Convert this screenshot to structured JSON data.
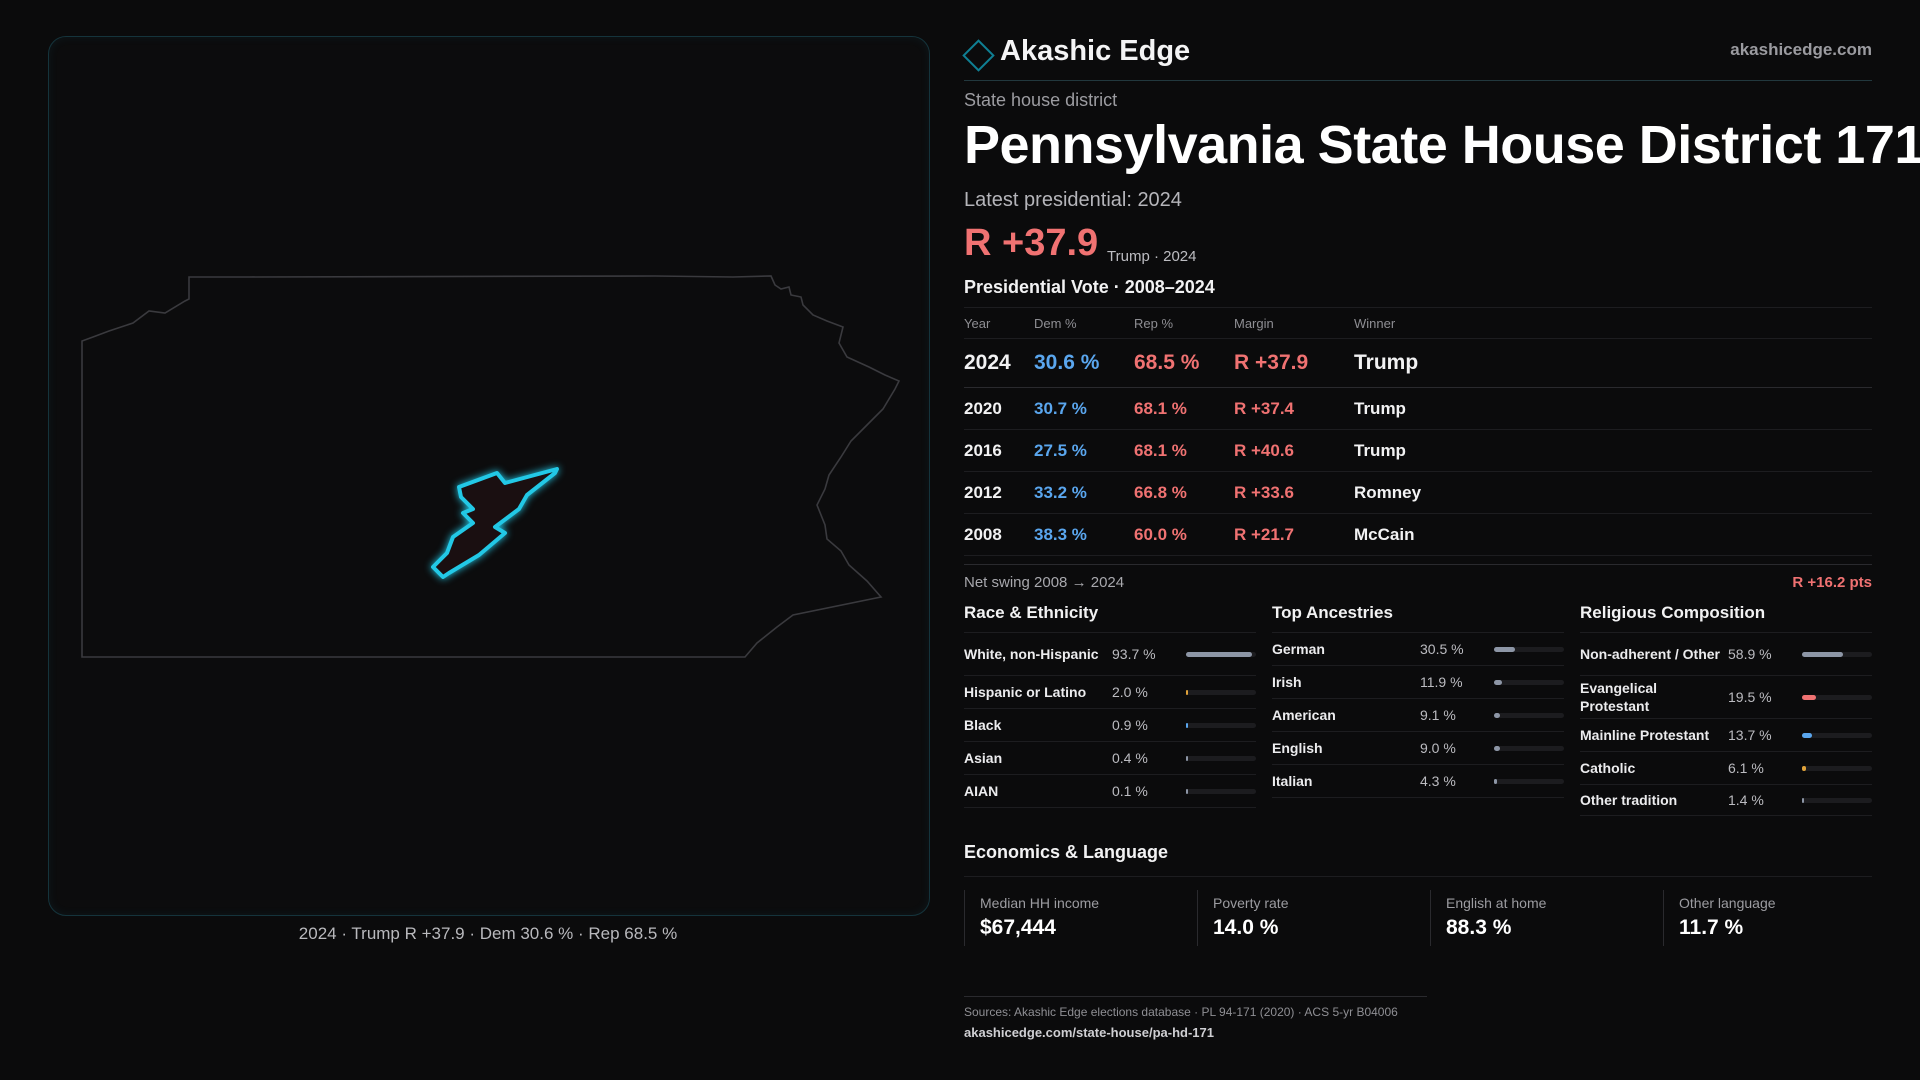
{
  "brand": {
    "name": "Akashic Edge",
    "url": "akashicedge.com"
  },
  "district": {
    "kind": "State house district",
    "title": "Pennsylvania State House District 171",
    "latest_label": "Latest presidential: 2024",
    "margin": "R +37.9",
    "margin_sub": "Trump · 2024"
  },
  "map": {
    "caption": "2024 · Trump R +37.9 · Dem 30.6 % · Rep 68.5 %",
    "state_stroke": "#3a3a3e",
    "district_fill": "#1a0f11",
    "district_stroke": "#22c8e6"
  },
  "vote_table": {
    "title": "Presidential Vote · 2008–2024",
    "headers": [
      "Year",
      "Dem %",
      "Rep %",
      "Margin",
      "Winner"
    ],
    "rows": [
      {
        "year": "2024",
        "dem": "30.6 %",
        "rep": "68.5 %",
        "margin": "R +37.9",
        "winner": "Trump"
      },
      {
        "year": "2020",
        "dem": "30.7 %",
        "rep": "68.1 %",
        "margin": "R +37.4",
        "winner": "Trump"
      },
      {
        "year": "2016",
        "dem": "27.5 %",
        "rep": "68.1 %",
        "margin": "R +40.6",
        "winner": "Trump"
      },
      {
        "year": "2012",
        "dem": "33.2 %",
        "rep": "66.8 %",
        "margin": "R +33.6",
        "winner": "Romney"
      },
      {
        "year": "2008",
        "dem": "38.3 %",
        "rep": "60.0 %",
        "margin": "R +21.7",
        "winner": "McCain"
      }
    ]
  },
  "swing": {
    "label": "Net swing 2008 → 2024",
    "value": "R +16.2 pts"
  },
  "race": {
    "title": "Race & Ethnicity",
    "items": [
      {
        "label": "White, non-Hispanic",
        "value": "93.7 %",
        "pct": 93.7,
        "color": "#8d96a6"
      },
      {
        "label": "Hispanic or Latino",
        "value": "2.0 %",
        "pct": 2.0,
        "color": "#e0a23a"
      },
      {
        "label": "Black",
        "value": "0.9 %",
        "pct": 0.9,
        "color": "#5aa6ee"
      },
      {
        "label": "Asian",
        "value": "0.4 %",
        "pct": 0.4,
        "color": "#8d96a6"
      },
      {
        "label": "AIAN",
        "value": "0.1 %",
        "pct": 0.1,
        "color": "#8d96a6"
      }
    ]
  },
  "ancestry": {
    "title": "Top Ancestries",
    "items": [
      {
        "label": "German",
        "value": "30.5 %",
        "pct": 30.5,
        "color": "#8d96a6"
      },
      {
        "label": "Irish",
        "value": "11.9 %",
        "pct": 11.9,
        "color": "#8d96a6"
      },
      {
        "label": "American",
        "value": "9.1 %",
        "pct": 9.1,
        "color": "#8d96a6"
      },
      {
        "label": "English",
        "value": "9.0 %",
        "pct": 9.0,
        "color": "#8d96a6"
      },
      {
        "label": "Italian",
        "value": "4.3 %",
        "pct": 4.3,
        "color": "#8d96a6"
      }
    ]
  },
  "religion": {
    "title": "Religious Composition",
    "items": [
      {
        "label": "Non-adherent / Other",
        "value": "58.9 %",
        "pct": 58.9,
        "color": "#8d96a6"
      },
      {
        "label": "Evangelical Protestant",
        "value": "19.5 %",
        "pct": 19.5,
        "color": "#f07272"
      },
      {
        "label": "Mainline Protestant",
        "value": "13.7 %",
        "pct": 13.7,
        "color": "#5aa6ee"
      },
      {
        "label": "Catholic",
        "value": "6.1 %",
        "pct": 6.1,
        "color": "#e0a23a"
      },
      {
        "label": "Other tradition",
        "value": "1.4 %",
        "pct": 1.4,
        "color": "#8d96a6"
      }
    ]
  },
  "economics": {
    "title": "Economics & Language",
    "items": [
      {
        "label": "Median HH income",
        "value": "$67,444"
      },
      {
        "label": "Poverty rate",
        "value": "14.0 %"
      },
      {
        "label": "English at home",
        "value": "88.3 %"
      },
      {
        "label": "Other language",
        "value": "11.7 %"
      }
    ]
  },
  "sources": {
    "line": "Sources: Akashic Edge elections database · PL 94-171 (2020) · ACS 5-yr B04006",
    "url": "akashicedge.com/state-house/pa-hd-171"
  }
}
